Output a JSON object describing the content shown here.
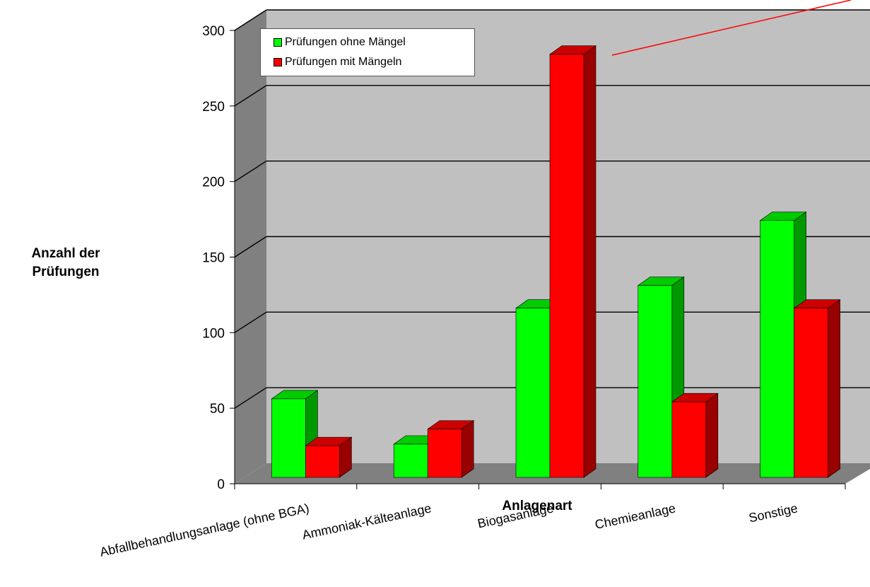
{
  "chart_data": {
    "type": "bar",
    "title": "",
    "xlabel": "Anlagenart",
    "ylabel_line1": "Anzahl der",
    "ylabel_line2": "Prüfungen",
    "categories": [
      "Abfallbehandlungsanlage (ohne BGA)",
      "Ammoniak-Kälteanlage",
      "Biogasanlage",
      "Chemieanlage",
      "Sonstige"
    ],
    "series": [
      {
        "name": "Prüfungen ohne Mängel",
        "values": [
          52,
          22,
          112,
          127,
          170
        ],
        "color": "#00ff00"
      },
      {
        "name": "Prüfungen mit Mängeln",
        "values": [
          21,
          32,
          280,
          50,
          112
        ],
        "color": "#ff0000"
      }
    ],
    "yticks": [
      "0",
      "50",
      "100",
      "150",
      "200",
      "250",
      "300"
    ],
    "ylim": [
      0,
      300
    ],
    "grid": true,
    "legend_position": "top-left",
    "style": "3d-clustered-column",
    "wall_color": "#c0c0c0",
    "floor_color": "#808080",
    "side_wall_color": "#808080"
  }
}
